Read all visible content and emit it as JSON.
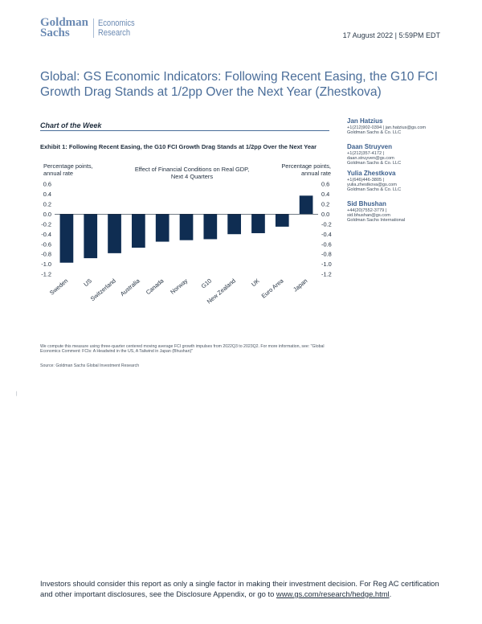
{
  "header": {
    "logo_line1": "Goldman",
    "logo_line2": "Sachs",
    "division_line1": "Economics",
    "division_line2": "Research",
    "date": "17 August 2022 | 5:59PM EDT"
  },
  "report": {
    "title": "Global: GS Economic Indicators: Following Recent Easing, the G10 FCI Growth Drag Stands at 1/2pp Over the Next Year (Zhestkova)",
    "section_label": "Chart of the Week",
    "exhibit_title": "Exhibit 1: Following Recent Easing, the G10 FCI Growth Drag Stands at 1/2pp Over the Next Year",
    "footnote": "We compute this measure using three-quarter centered moving average FCI growth impulses from 2022Q3 to 2023Q2. For more information, see: \"Global Economics Comment: FCIs: A Headwind in the US, A Tailwind in Japan (Bhushan)\"",
    "source": "Source: Goldman Sachs Global Investment Research",
    "margin_mark": "|"
  },
  "authors": [
    {
      "name": "Jan Hatzius",
      "line1": "+1(212)902-0394 | jan.hatzius@gs.com",
      "line2": "Goldman Sachs & Co. LLC"
    },
    {
      "name": "Daan Struyven",
      "line1": "+1(212)357-4172 |",
      "line2": "daan.struyven@gs.com",
      "line3": "Goldman Sachs & Co. LLC"
    },
    {
      "name": "Yulia Zhestkova",
      "line1": "+1(646)446-3805 |",
      "line2": "yulia.zhestkova@gs.com",
      "line3": "Goldman Sachs & Co. LLC"
    },
    {
      "name": "Sid Bhushan",
      "line1": "+44(20)7552-3779 |",
      "line2": "sid.bhushan@gs.com",
      "line3": "Goldman Sachs International"
    }
  ],
  "chart_data": {
    "type": "bar",
    "title": "Effect of Financial Conditions on Real GDP, Next 4 Quarters",
    "title_line1": "Effect of Financial Conditions on Real GDP,",
    "title_line2": "Next 4 Quarters",
    "ylabel_left_line1": "Percentage points,",
    "ylabel_left_line2": "annual rate",
    "ylabel_right_line1": "Percentage points,",
    "ylabel_right_line2": "annual rate",
    "ylim": [
      -1.2,
      0.6
    ],
    "yticks": [
      "0.6",
      "0.4",
      "0.2",
      "0.0",
      "-0.2",
      "-0.4",
      "-0.6",
      "-0.8",
      "-1.0",
      "-1.2"
    ],
    "ytick_values": [
      0.6,
      0.4,
      0.2,
      0.0,
      -0.2,
      -0.4,
      -0.6,
      -0.8,
      -1.0,
      -1.2
    ],
    "categories": [
      "Sweden",
      "US",
      "Switzerland",
      "Australia",
      "Canada",
      "Norway",
      "G10",
      "New Zealand",
      "UK",
      "Euro Area",
      "Japan"
    ],
    "values": [
      -0.97,
      -0.88,
      -0.78,
      -0.67,
      -0.55,
      -0.52,
      -0.5,
      -0.4,
      -0.38,
      -0.25,
      0.37
    ],
    "bar_color": "#0f2d52",
    "grid": false
  },
  "footer": {
    "disclaimer": "Investors should consider this report as only a single factor in making their investment decision. For Reg AC certification and other important disclosures, see the Disclosure Appendix, or go to ",
    "link_text": "www.gs.com/research/hedge.html",
    "link_suffix": "."
  }
}
